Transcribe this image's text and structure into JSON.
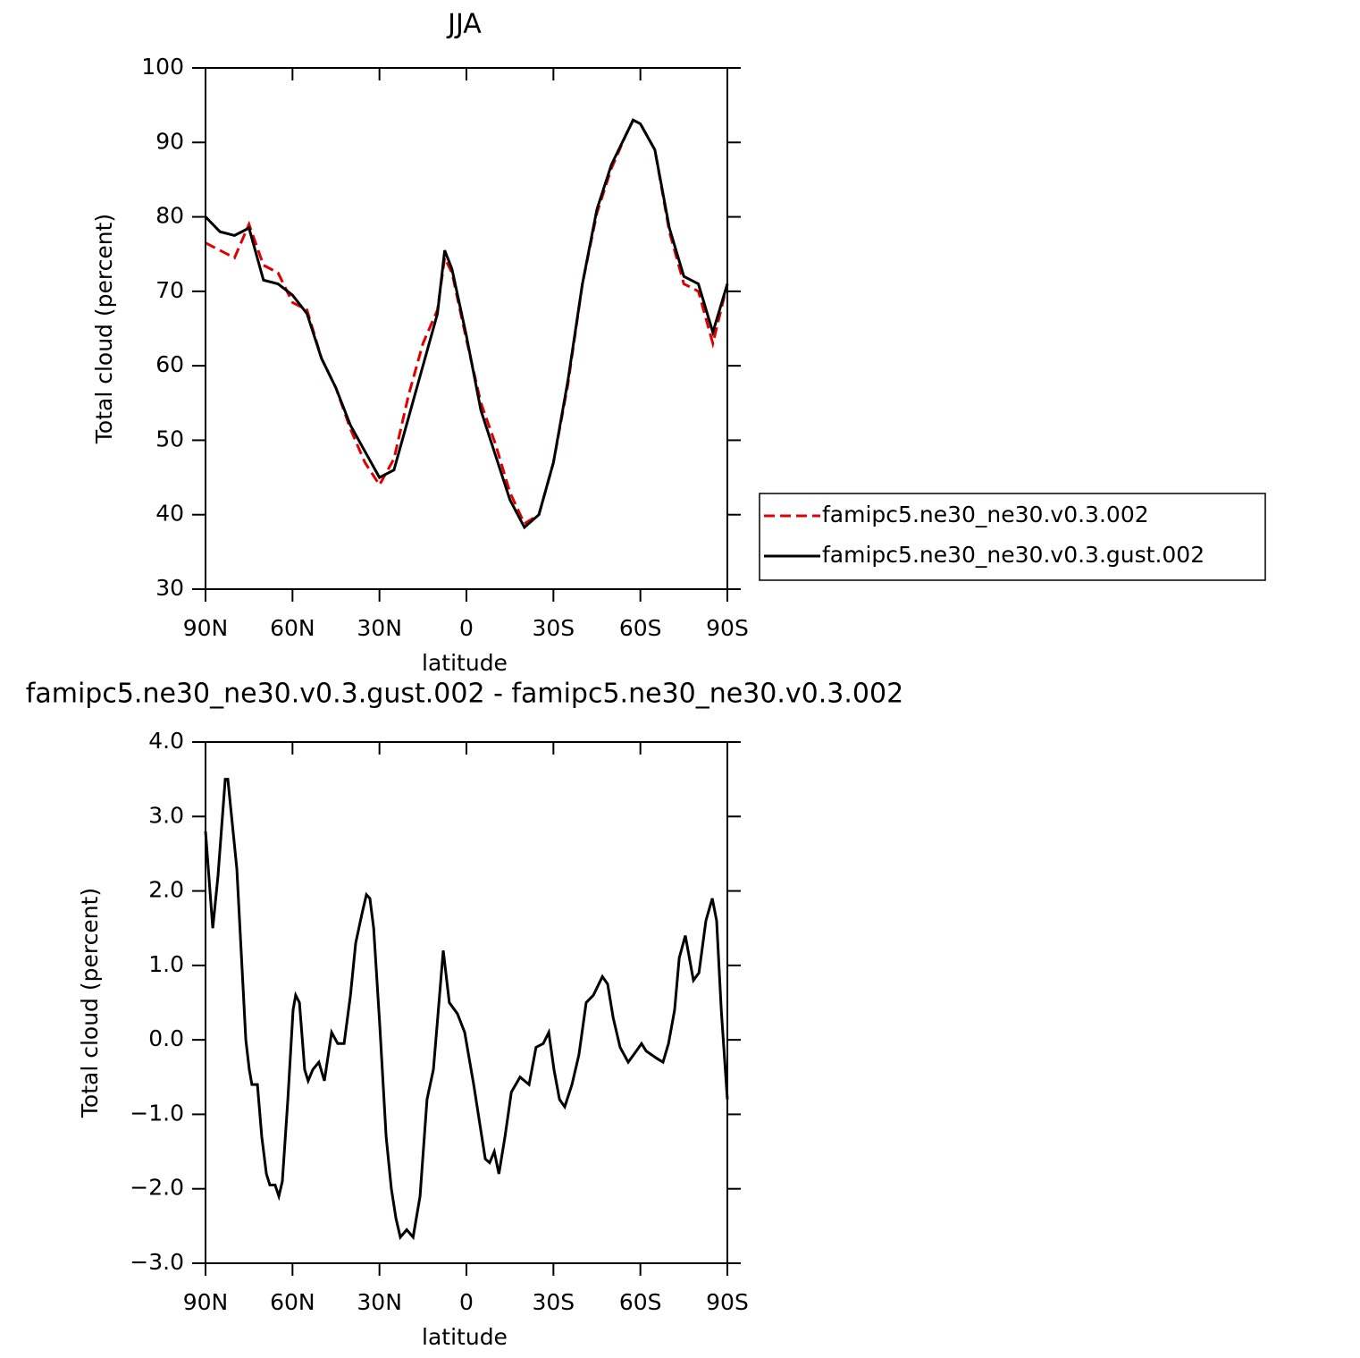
{
  "chart_data": [
    {
      "type": "line",
      "title": "JJA",
      "x_label": "latitude",
      "y_label": "Total cloud (percent)",
      "x": [
        90,
        85,
        80,
        75,
        70,
        65,
        60,
        55,
        50,
        45,
        40,
        35,
        30,
        25,
        20,
        15,
        10,
        7.5,
        5,
        0,
        -5,
        -10,
        -15,
        -20,
        -25,
        -30,
        -35,
        -40,
        -45,
        -50,
        -55,
        -57.5,
        -60,
        -65,
        -70,
        -75,
        -80,
        -85,
        -90
      ],
      "series": [
        {
          "name": "famipc5.ne30_ne30.v0.3.002",
          "color": "#e00000",
          "dashed": true,
          "values": [
            76.5,
            75.5,
            74.5,
            79,
            73.5,
            72.5,
            68.5,
            67.5,
            61,
            57,
            51.5,
            47,
            44,
            47.5,
            56,
            63,
            67.5,
            74.5,
            72.5,
            63.5,
            55,
            49.5,
            43,
            38.8,
            40,
            47,
            57.5,
            71,
            80.5,
            86.5,
            91,
            93,
            92.5,
            89,
            78,
            71,
            70,
            63,
            71
          ]
        },
        {
          "name": "famipc5.ne30_ne30.v0.3.gust.002",
          "color": "#000000",
          "dashed": false,
          "values": [
            80,
            78,
            77.5,
            78.5,
            71.5,
            71,
            69.5,
            67,
            61,
            57,
            52,
            48.5,
            45,
            46,
            53,
            60,
            67,
            75.5,
            73,
            64,
            54,
            48,
            42,
            38.3,
            40,
            47,
            58,
            71,
            81,
            87,
            91,
            93,
            92.5,
            89,
            78.5,
            72,
            71,
            64.5,
            71
          ]
        }
      ],
      "xlim": [
        90,
        -90
      ],
      "xticks": [
        {
          "value": 90,
          "label": "90N"
        },
        {
          "value": 60,
          "label": "60N"
        },
        {
          "value": 30,
          "label": "30N"
        },
        0,
        {
          "value": -30,
          "label": "30S"
        },
        {
          "value": -60,
          "label": "60S"
        },
        {
          "value": -90,
          "label": "90S"
        }
      ],
      "ylim": [
        30,
        100
      ],
      "yticks": [
        30,
        40,
        50,
        60,
        70,
        80,
        90,
        100
      ],
      "legend": "right"
    },
    {
      "type": "line",
      "title": "famipc5.ne30_ne30.v0.3.gust.002 - famipc5.ne30_ne30.v0.3.002",
      "x_label": "latitude",
      "y_label": "Total cloud (percent)",
      "color": "#000000",
      "x": [
        90,
        87.5,
        85.7,
        83.2,
        82.3,
        79.2,
        76.1,
        74.9,
        74,
        72.1,
        70.6,
        69,
        67.8,
        66,
        64.7,
        63.5,
        61.6,
        59.8,
        58.9,
        57.6,
        55.8,
        54.6,
        53,
        50.9,
        49,
        46.5,
        44.4,
        42.2,
        40,
        38.2,
        36,
        34.5,
        33.3,
        32,
        29.9,
        27.7,
        25.9,
        24.3,
        22.8,
        20.6,
        18.4,
        16,
        13.6,
        11.4,
        9.9,
        8,
        5.9,
        3.1,
        0.6,
        -2.5,
        -4.9,
        -6.5,
        -8,
        -9.6,
        -11.2,
        -13.3,
        -15.5,
        -18.5,
        -21.6,
        -24,
        -26.5,
        -28.4,
        -30.2,
        -32.1,
        -33.9,
        -36.4,
        -38.8,
        -41.3,
        -43.8,
        -46.9,
        -48.7,
        -50.6,
        -53,
        -55.8,
        -58.6,
        -60.4,
        -62,
        -65.7,
        -67.8,
        -69.7,
        -71.8,
        -73.4,
        -75.5,
        -78.3,
        -80.2,
        -82.6,
        -84.8,
        -86.3,
        -87.9,
        -90
      ],
      "values": [
        2.8,
        1.5,
        2.2,
        3.5,
        3.5,
        2.3,
        0,
        -0.4,
        -0.6,
        -0.6,
        -1.3,
        -1.8,
        -1.95,
        -1.95,
        -2.1,
        -1.9,
        -0.8,
        0.4,
        0.6,
        0.5,
        -0.4,
        -0.55,
        -0.4,
        -0.3,
        -0.55,
        0.1,
        -0.05,
        -0.05,
        0.6,
        1.3,
        1.7,
        1.95,
        1.9,
        1.5,
        0.2,
        -1.3,
        -2,
        -2.4,
        -2.65,
        -2.55,
        -2.65,
        -2.1,
        -0.8,
        -0.4,
        0.3,
        1.2,
        0.5,
        0.35,
        0.1,
        -0.6,
        -1.2,
        -1.6,
        -1.65,
        -1.5,
        -1.8,
        -1.3,
        -0.7,
        -0.5,
        -0.6,
        -0.1,
        -0.05,
        0.1,
        -0.4,
        -0.8,
        -0.9,
        -0.6,
        -0.2,
        0.5,
        0.6,
        0.85,
        0.75,
        0.3,
        -0.1,
        -0.3,
        -0.15,
        -0.05,
        -0.15,
        -0.25,
        -0.3,
        -0.05,
        0.4,
        1.1,
        1.4,
        0.8,
        0.9,
        1.6,
        1.9,
        1.6,
        0.4,
        -0.8
      ],
      "xlim": [
        90,
        -90
      ],
      "xticks": [
        {
          "value": 90,
          "label": "90N"
        },
        {
          "value": 60,
          "label": "60N"
        },
        {
          "value": 30,
          "label": "30N"
        },
        0,
        {
          "value": -30,
          "label": "30S"
        },
        {
          "value": -60,
          "label": "60S"
        },
        {
          "value": -90,
          "label": "90S"
        }
      ],
      "ylim": [
        -3,
        4
      ],
      "yticks": [
        {
          "value": -3,
          "label": "−3.0"
        },
        {
          "value": -2,
          "label": "−2.0"
        },
        {
          "value": -1,
          "label": "−1.0"
        },
        {
          "value": 0,
          "label": "0.0"
        },
        {
          "value": 1,
          "label": "1.0"
        },
        {
          "value": 2,
          "label": "2.0"
        },
        {
          "value": 3,
          "label": "3.0"
        },
        {
          "value": 4,
          "label": "4.0"
        }
      ]
    }
  ]
}
